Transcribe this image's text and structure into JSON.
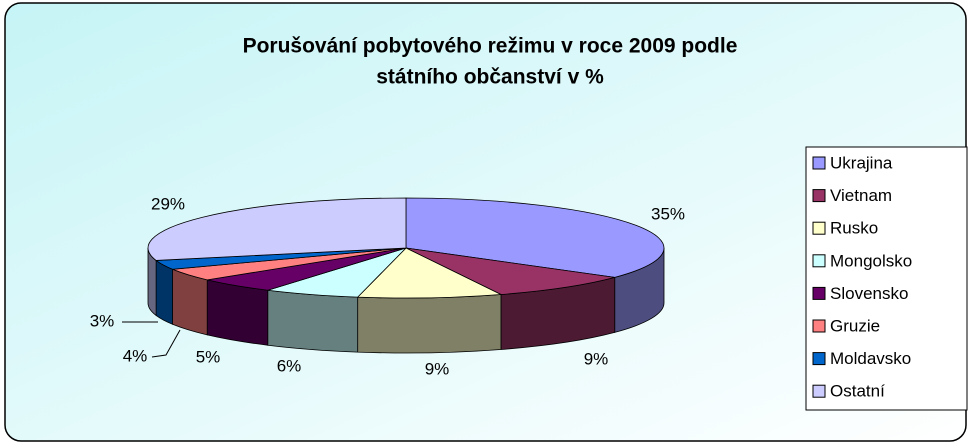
{
  "chart_data": {
    "type": "pie3d",
    "title": [
      "Porušování pobytového režimu v roce 2009 podle",
      "státního občanství v %"
    ],
    "categories": [
      "Ukrajina",
      "Vietnam",
      "Rusko",
      "Mongolsko",
      "Slovensko",
      "Gruzie",
      "Moldavsko",
      "Ostatní"
    ],
    "values": [
      35,
      9,
      9,
      6,
      5,
      4,
      3,
      29
    ],
    "value_labels": [
      "35%",
      "9%",
      "9%",
      "6%",
      "5%",
      "4%",
      "3%",
      "29%"
    ],
    "colors": [
      "#9999ff",
      "#993366",
      "#ffffcc",
      "#ccffff",
      "#660066",
      "#ff8080",
      "#0066cc",
      "#ccccff"
    ],
    "legend": "right"
  }
}
